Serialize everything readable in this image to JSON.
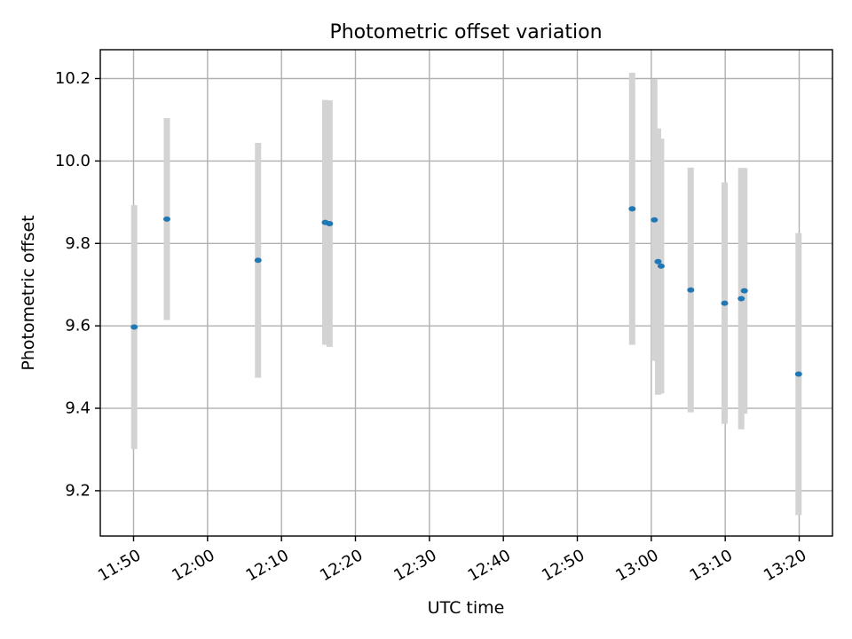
{
  "chart_data": {
    "type": "scatter",
    "title": "Photometric offset variation",
    "xlabel": "UTC time",
    "ylabel": "Photometric offset",
    "xlim": [
      "11:45:30",
      "13:24:30"
    ],
    "ylim": [
      9.09,
      10.27
    ],
    "grid": true,
    "x_ticks": [
      "11:50",
      "12:00",
      "12:10",
      "12:20",
      "12:30",
      "12:40",
      "12:50",
      "13:00",
      "13:10",
      "13:20"
    ],
    "y_ticks": [
      9.2,
      9.4,
      9.6,
      9.8,
      10.0,
      10.2
    ],
    "y_tick_labels": [
      "9.2",
      "9.4",
      "9.6",
      "9.8",
      "10.0",
      "10.2"
    ],
    "colors": {
      "marker": "#1f77b4",
      "errorbar": "#d3d3d3",
      "grid": "#b0b0b0"
    },
    "points": [
      {
        "time": "11:50:05",
        "value": 9.597,
        "err": 0.296
      },
      {
        "time": "11:54:30",
        "value": 9.859,
        "err": 0.245
      },
      {
        "time": "12:06:50",
        "value": 9.759,
        "err": 0.285
      },
      {
        "time": "12:15:55",
        "value": 9.851,
        "err": 0.297
      },
      {
        "time": "12:16:30",
        "value": 9.848,
        "err": 0.299
      },
      {
        "time": "12:57:25",
        "value": 9.884,
        "err": 0.33
      },
      {
        "time": "13:00:25",
        "value": 9.857,
        "err": 0.342
      },
      {
        "time": "13:00:55",
        "value": 9.756,
        "err": 0.323
      },
      {
        "time": "13:01:20",
        "value": 9.745,
        "err": 0.309
      },
      {
        "time": "13:05:20",
        "value": 9.687,
        "err": 0.297
      },
      {
        "time": "13:09:55",
        "value": 9.655,
        "err": 0.293
      },
      {
        "time": "13:12:10",
        "value": 9.666,
        "err": 0.317
      },
      {
        "time": "13:12:35",
        "value": 9.685,
        "err": 0.298
      },
      {
        "time": "13:19:55",
        "value": 9.483,
        "err": 0.342
      }
    ]
  }
}
